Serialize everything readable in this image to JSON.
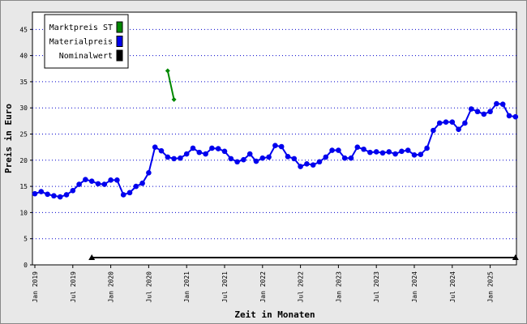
{
  "chart_data": {
    "type": "line",
    "x_label": "Zeit in Monaten",
    "y_label": "Preis in Euro",
    "categories": [
      "Jan 2019",
      null,
      null,
      null,
      null,
      null,
      "Jul 2019",
      null,
      null,
      null,
      null,
      null,
      "Jan 2020",
      null,
      null,
      null,
      null,
      null,
      "Jul 2020",
      null,
      null,
      null,
      null,
      null,
      "Jan 2021",
      null,
      null,
      null,
      null,
      null,
      "Jul 2021",
      null,
      null,
      null,
      null,
      null,
      "Jan 2022",
      null,
      null,
      null,
      null,
      null,
      "Jul 2022",
      null,
      null,
      null,
      null,
      null,
      "Jan 2023",
      null,
      null,
      null,
      null,
      null,
      "Jul 2023",
      null,
      null,
      null,
      null,
      null,
      "Jan 2024",
      null,
      null,
      null,
      null,
      null,
      "Jul 2024",
      null,
      null,
      null,
      null,
      null,
      "Jan 2025",
      null,
      null,
      null,
      null
    ],
    "series": [
      {
        "name": "Marktpreis ST",
        "color": "#008800",
        "marker": "diamond",
        "values": [
          null,
          null,
          null,
          null,
          null,
          null,
          null,
          null,
          null,
          null,
          null,
          null,
          null,
          null,
          null,
          null,
          null,
          null,
          null,
          null,
          null,
          37.1,
          31.6,
          null,
          null,
          null,
          null,
          null,
          null,
          null,
          null,
          null,
          null,
          null,
          null,
          null,
          null,
          null,
          null,
          null,
          null,
          null,
          null,
          null,
          null,
          null,
          null,
          null,
          null,
          null,
          null,
          null,
          null,
          null,
          null,
          null,
          null,
          null,
          null,
          null,
          null,
          null,
          null,
          null,
          null,
          null,
          null,
          null,
          null,
          null,
          null,
          null,
          null,
          null,
          null,
          null,
          null
        ]
      },
      {
        "name": "Materialpreis",
        "color": "#0000ee",
        "marker": "circle",
        "values": [
          13.6,
          14,
          13.5,
          13.2,
          13,
          13.4,
          14.2,
          15.4,
          16.3,
          16,
          15.5,
          15.4,
          16.2,
          16.2,
          13.4,
          13.8,
          15,
          15.6,
          17.6,
          22.5,
          21.8,
          20.6,
          20.3,
          20.4,
          21.2,
          22.3,
          21.5,
          21.2,
          22.3,
          22.2,
          21.7,
          20.3,
          19.7,
          20.1,
          21.2,
          19.8,
          20.4,
          20.6,
          22.8,
          22.6,
          20.7,
          20.3,
          18.8,
          19.3,
          19.1,
          19.7,
          20.6,
          21.9,
          21.9,
          20.4,
          20.4,
          22.5,
          22.1,
          21.5,
          21.6,
          21.4,
          21.6,
          21.2,
          21.7,
          21.9,
          21,
          21.1,
          22.3,
          25.7,
          27.1,
          27.3,
          27.3,
          25.9,
          27.1,
          29.8,
          29.3,
          28.8,
          29.3,
          30.8,
          30.7,
          28.5,
          28.3
        ]
      },
      {
        "name": "Nominalwert",
        "color": "#000000",
        "marker": "triangle-ends",
        "values": [
          null,
          null,
          null,
          null,
          null,
          null,
          null,
          null,
          null,
          1.4,
          1.4,
          1.4,
          1.4,
          1.4,
          1.4,
          1.4,
          1.4,
          1.4,
          1.4,
          1.4,
          1.4,
          1.4,
          1.4,
          1.4,
          1.4,
          1.4,
          1.4,
          1.4,
          1.4,
          1.4,
          1.4,
          1.4,
          1.4,
          1.4,
          1.4,
          1.4,
          1.4,
          1.4,
          1.4,
          1.4,
          1.4,
          1.4,
          1.4,
          1.4,
          1.4,
          1.4,
          1.4,
          1.4,
          1.4,
          1.4,
          1.4,
          1.4,
          1.4,
          1.4,
          1.4,
          1.4,
          1.4,
          1.4,
          1.4,
          1.4,
          1.4,
          1.4,
          1.4,
          1.4,
          1.4,
          1.4,
          1.4,
          1.4,
          1.4,
          1.4,
          1.4,
          1.4,
          1.4,
          1.4,
          1.4,
          1.4,
          1.4
        ]
      }
    ],
    "ylim": [
      0,
      48.3
    ],
    "yticks": [
      0,
      5,
      10,
      15,
      20,
      25,
      30,
      35,
      40,
      45
    ],
    "grid": true,
    "legend": "upper left"
  }
}
